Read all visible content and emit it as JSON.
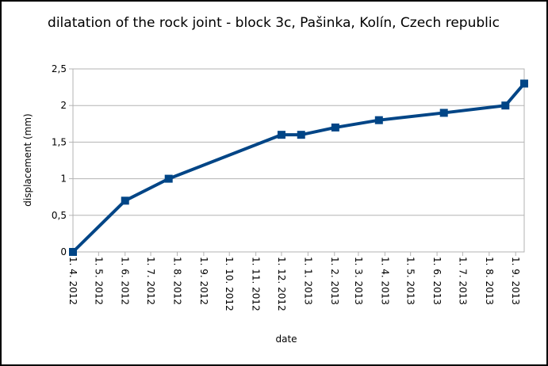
{
  "chart_data": {
    "type": "line",
    "title": "dilatation of the rock joint - block 3c, Pašinka, Kolín, Czech republic",
    "x_label": "date",
    "y_label": "displacement (mm)",
    "x": [
      "2012-04-01",
      "2012-06-01",
      "2012-07-22",
      "2012-12-01",
      "2012-12-24",
      "2013-02-02",
      "2013-03-25",
      "2013-06-09",
      "2013-08-20",
      "2013-09-11"
    ],
    "series": [
      {
        "name": "dilatation",
        "color": "#004586",
        "values": [
          0,
          0.7,
          1,
          1.6,
          1.6,
          1.7,
          1.8,
          1.9,
          2,
          2.3
        ]
      }
    ],
    "xlim": [
      "2012-04-01",
      "2013-09-11"
    ],
    "xticks": [
      {
        "value": "2012-04-01",
        "label": "1. 4. 2012"
      },
      {
        "value": "2012-05-01",
        "label": "1. 5. 2012"
      },
      {
        "value": "2012-06-01",
        "label": "1. 6. 2012"
      },
      {
        "value": "2012-07-01",
        "label": "1. 7. 2012"
      },
      {
        "value": "2012-08-01",
        "label": "1. 8. 2012"
      },
      {
        "value": "2012-09-01",
        "label": "1. 9. 2012"
      },
      {
        "value": "2012-10-01",
        "label": "1. 10. 2012"
      },
      {
        "value": "2012-11-01",
        "label": "1. 11. 2012"
      },
      {
        "value": "2012-12-01",
        "label": "1. 12. 2012"
      },
      {
        "value": "2013-01-01",
        "label": "1. 1. 2013"
      },
      {
        "value": "2013-02-01",
        "label": "1. 2. 2013"
      },
      {
        "value": "2013-03-01",
        "label": "1. 3. 2013"
      },
      {
        "value": "2013-04-01",
        "label": "1. 4. 2013"
      },
      {
        "value": "2013-05-01",
        "label": "1. 5. 2013"
      },
      {
        "value": "2013-06-01",
        "label": "1. 6. 2013"
      },
      {
        "value": "2013-07-01",
        "label": "1. 7. 2013"
      },
      {
        "value": "2013-08-01",
        "label": "1. 8. 2013"
      },
      {
        "value": "2013-09-01",
        "label": "1. 9. 2013"
      }
    ],
    "ylim": [
      0,
      2.5
    ],
    "yticks": [
      0,
      {
        "value": 0.5,
        "label": "0,5"
      },
      1,
      {
        "value": 1.5,
        "label": "1,5"
      },
      2,
      {
        "value": 2.5,
        "label": "2,5"
      }
    ],
    "grid": true
  }
}
